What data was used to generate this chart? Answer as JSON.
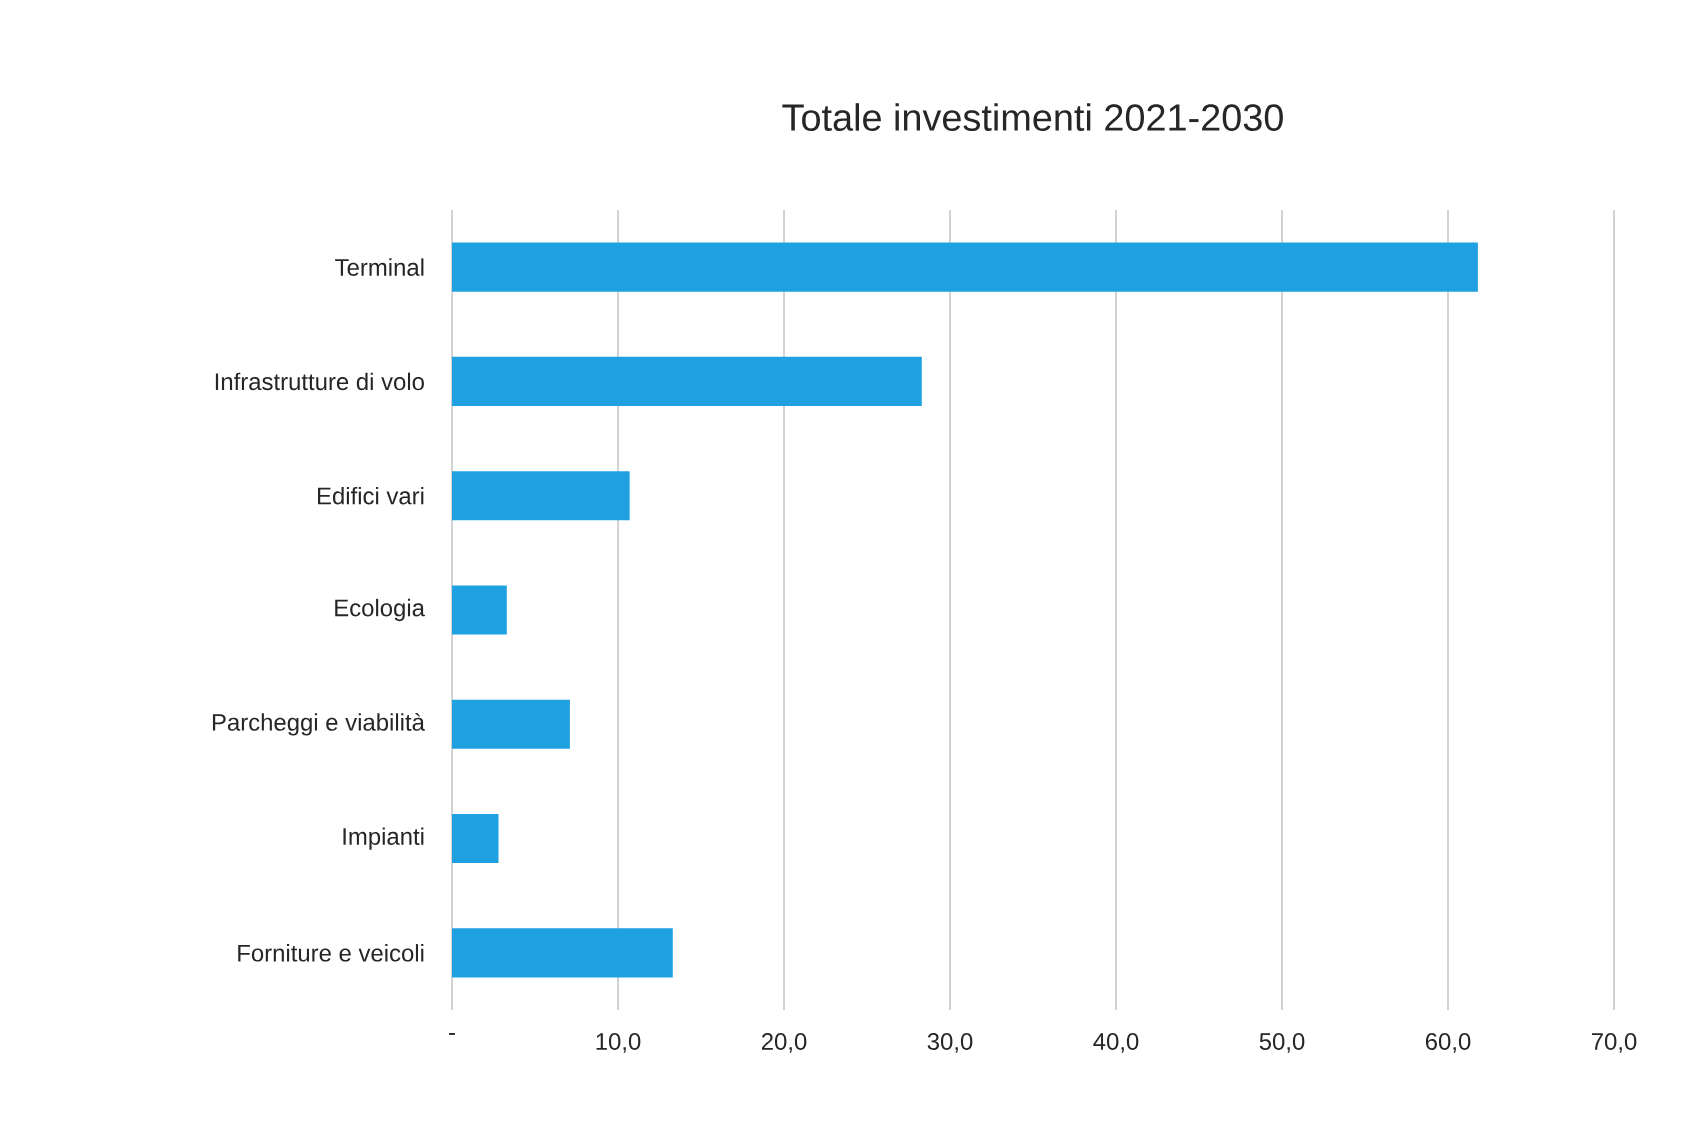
{
  "chart_data": {
    "type": "bar",
    "orientation": "horizontal",
    "title": "Totale investimenti 2021-2030",
    "categories": [
      "Terminal",
      "Infrastrutture di volo",
      "Edifici vari",
      "Ecologia",
      "Parcheggi e viabilità",
      "Impianti",
      "Forniture e veicoli"
    ],
    "values": [
      61.8,
      28.3,
      10.7,
      3.3,
      7.1,
      2.8,
      13.3
    ],
    "color": "#1fa0e0",
    "xlim": [
      0,
      70
    ],
    "xticks": [
      {
        "value": 0,
        "label": "-"
      },
      {
        "value": 10,
        "label": "10,0"
      },
      {
        "value": 20,
        "label": "20,0"
      },
      {
        "value": 30,
        "label": "30,0"
      },
      {
        "value": 40,
        "label": "40,0"
      },
      {
        "value": 50,
        "label": "50,0"
      },
      {
        "value": 60,
        "label": "60,0"
      },
      {
        "value": 70,
        "label": "70,0"
      }
    ],
    "grid": "x"
  }
}
